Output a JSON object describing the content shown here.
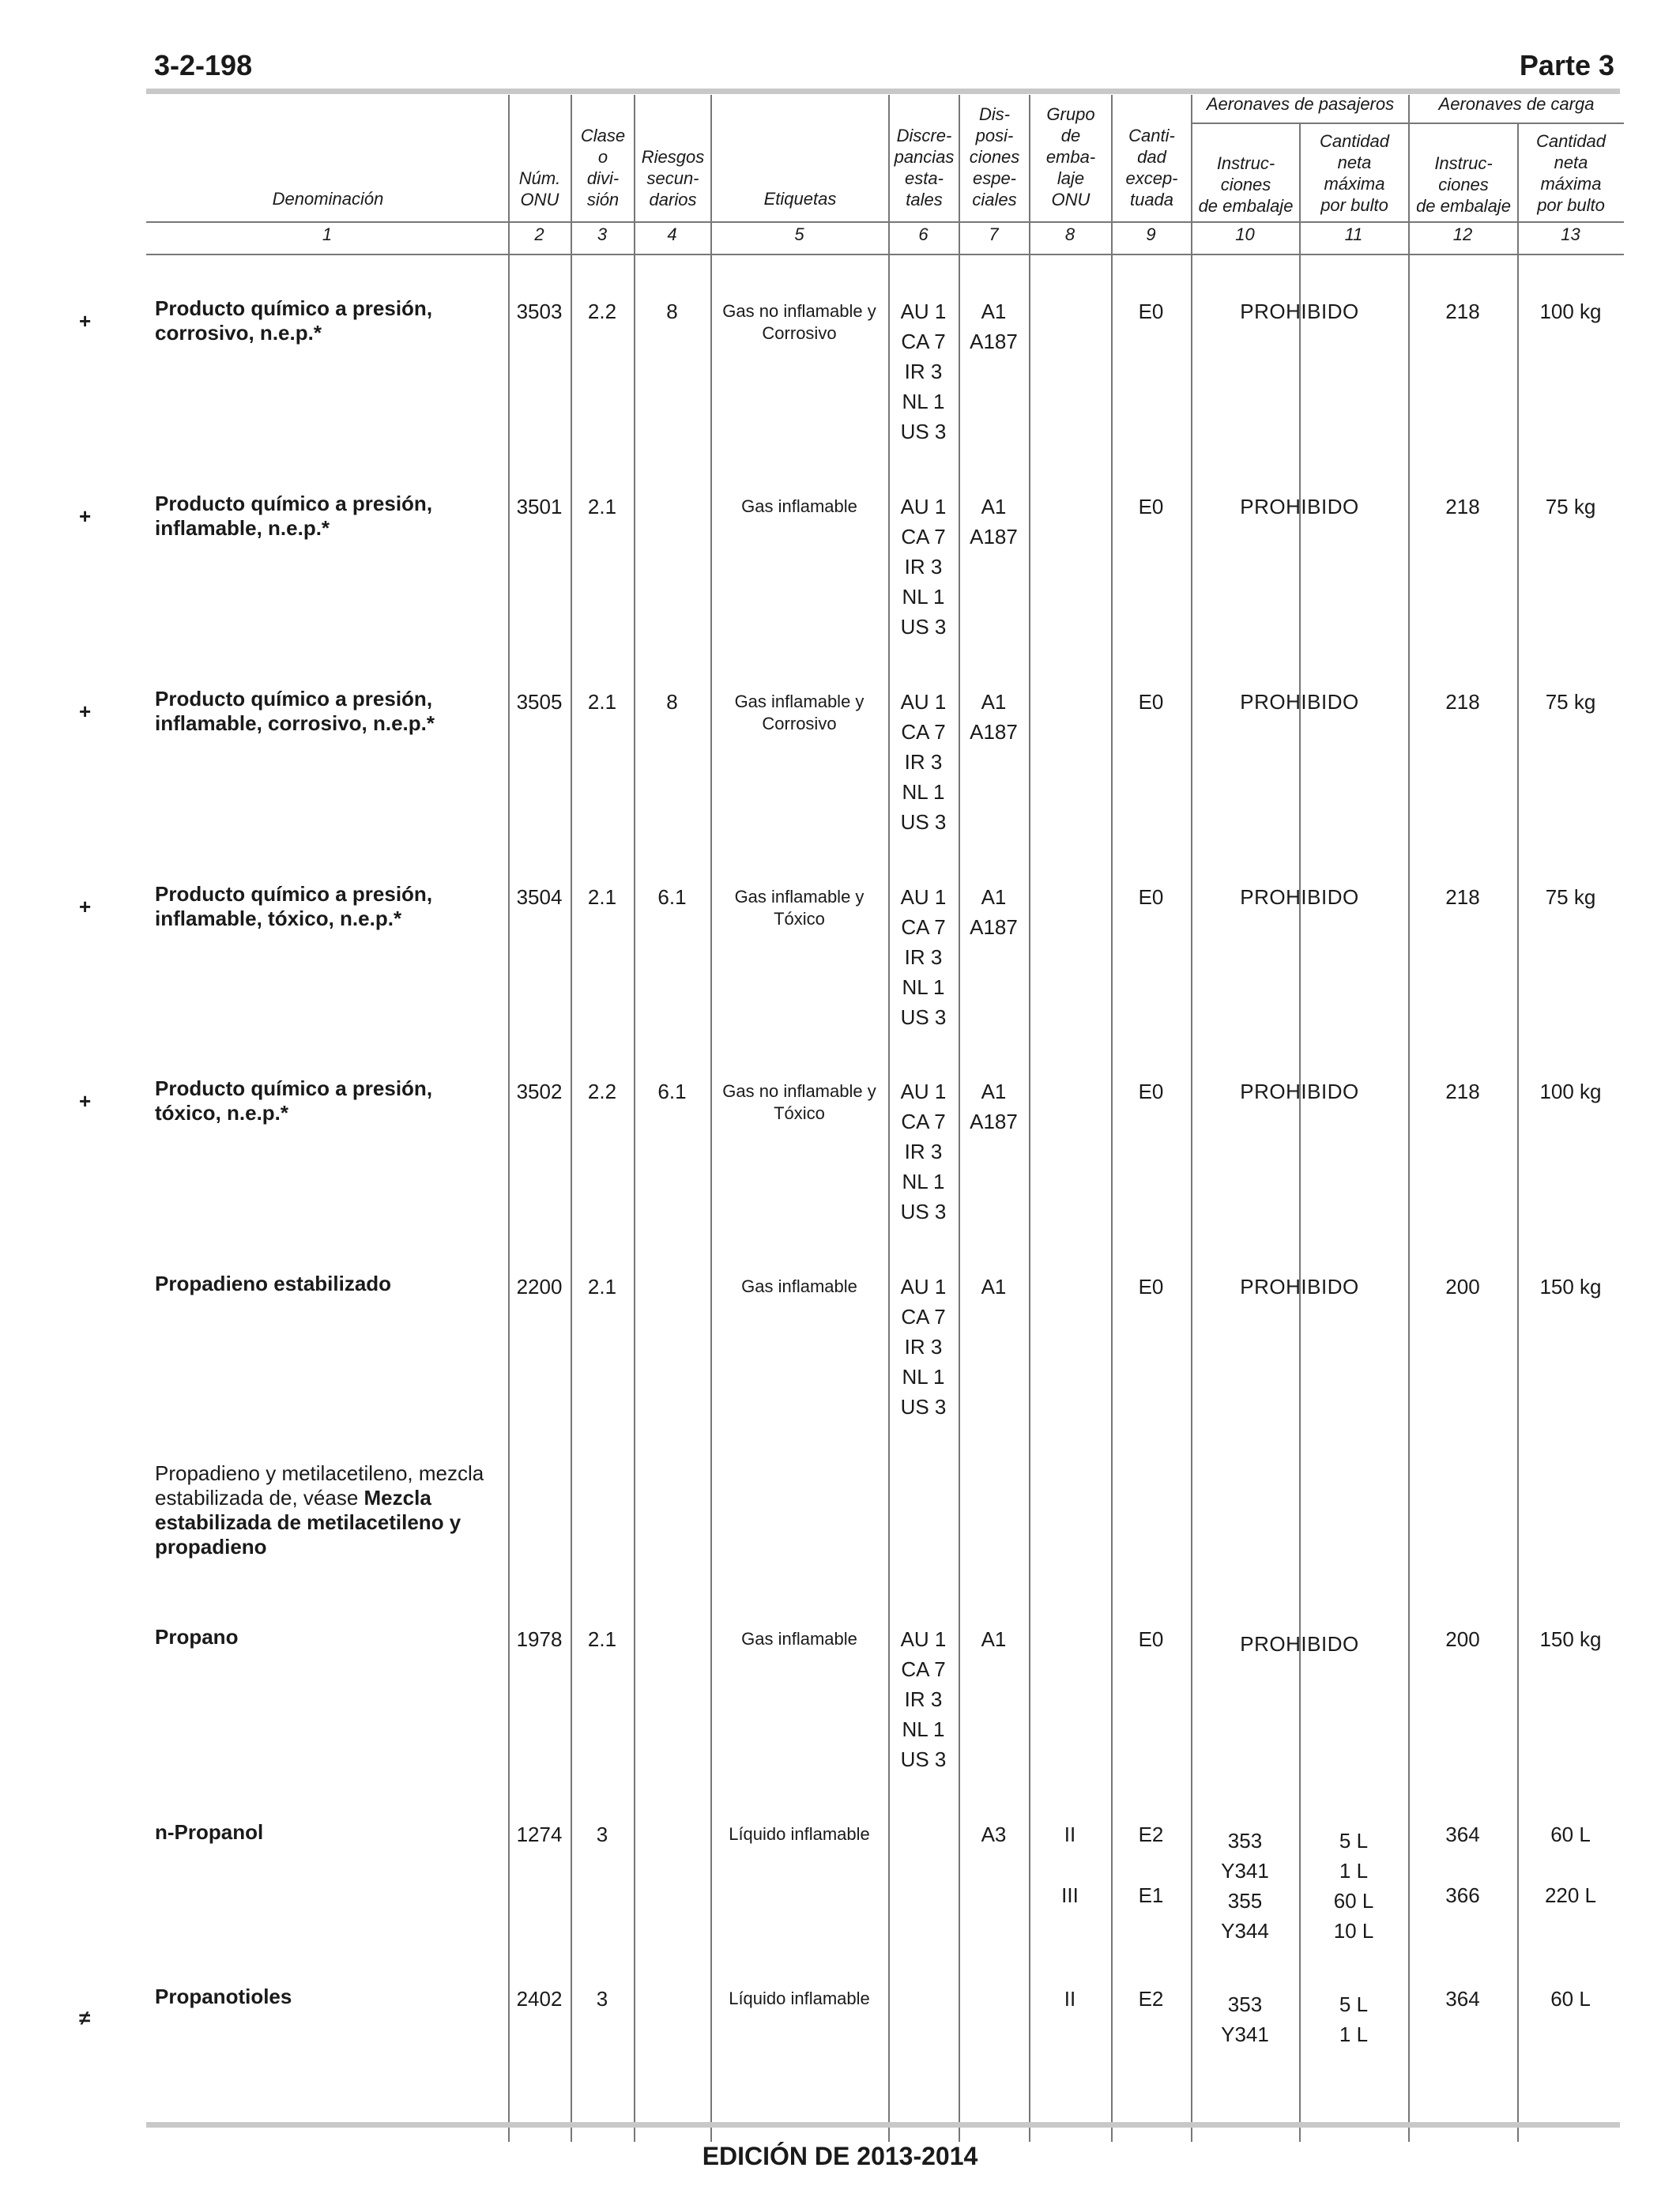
{
  "page": {
    "number": "3-2-198",
    "part": "Parte 3",
    "footer": "EDICIÓN DE 2013-2014"
  },
  "headers": {
    "denominacion": "Denominación",
    "num_onu": "Núm.\nONU",
    "clase": "Clase\no\ndivi-\nsión",
    "riesgos": "Riesgos\nsecun-\ndarios",
    "etiquetas": "Etiquetas",
    "discrepancias": "Discre-\npancias\nesta-\ntales",
    "disposiciones": "Dis-\nposi-\nciones\nespe-\nciales",
    "grupo": "Grupo\nde\nemba-\nlaje\nONU",
    "cantidad_exceptuada": "Canti-\ndad\nexcep-\ntuada",
    "pasajeros": "Aeronaves de pasajeros",
    "carga": "Aeronaves de carga",
    "instrucciones": "Instruc-\nciones\nde embalaje",
    "cantidad_neta": "Cantidad\nneta\nmáxima\npor bulto",
    "col_numbers": [
      "1",
      "2",
      "3",
      "4",
      "5",
      "6",
      "7",
      "8",
      "9",
      "10",
      "11",
      "12",
      "13"
    ]
  },
  "rows": [
    {
      "mark": "+",
      "name": "Producto químico a presión, corrosivo, n.e.p.*",
      "un": "3503",
      "class": "2.2",
      "sub": "8",
      "label": "Gas no inflamable y\nCorrosivo",
      "disc": "AU 1\nCA 7\nIR 3\nNL 1\nUS 3",
      "sp": "A1\nA187",
      "pg": "",
      "eq": "E0",
      "pax_pi": "PROHIBIDO",
      "pax_qty": "",
      "cargo_pi": "218",
      "cargo_qty": "100 kg"
    },
    {
      "mark": "+",
      "name": "Producto químico a presión, inflamable, n.e.p.*",
      "un": "3501",
      "class": "2.1",
      "sub": "",
      "label": "Gas inflamable",
      "disc": "AU 1\nCA 7\nIR 3\nNL 1\nUS 3",
      "sp": "A1\nA187",
      "pg": "",
      "eq": "E0",
      "pax_pi": "PROHIBIDO",
      "pax_qty": "",
      "cargo_pi": "218",
      "cargo_qty": "75 kg"
    },
    {
      "mark": "+",
      "name": "Producto químico a presión, inflamable, corrosivo, n.e.p.*",
      "un": "3505",
      "class": "2.1",
      "sub": "8",
      "label": "Gas inflamable y\nCorrosivo",
      "disc": "AU 1\nCA 7\nIR 3\nNL 1\nUS 3",
      "sp": "A1\nA187",
      "pg": "",
      "eq": "E0",
      "pax_pi": "PROHIBIDO",
      "pax_qty": "",
      "cargo_pi": "218",
      "cargo_qty": "75 kg"
    },
    {
      "mark": "+",
      "name": "Producto químico a presión, inflamable, tóxico, n.e.p.*",
      "un": "3504",
      "class": "2.1",
      "sub": "6.1",
      "label": "Gas inflamable y\nTóxico",
      "disc": "AU 1\nCA 7\nIR 3\nNL 1\nUS 3",
      "sp": "A1\nA187",
      "pg": "",
      "eq": "E0",
      "pax_pi": "PROHIBIDO",
      "pax_qty": "",
      "cargo_pi": "218",
      "cargo_qty": "75 kg"
    },
    {
      "mark": "+",
      "name": "Producto químico a presión, tóxico, n.e.p.*",
      "un": "3502",
      "class": "2.2",
      "sub": "6.1",
      "label": "Gas no inflamable y\nTóxico",
      "disc": "AU 1\nCA 7\nIR 3\nNL 1\nUS 3",
      "sp": "A1\nA187",
      "pg": "",
      "eq": "E0",
      "pax_pi": "PROHIBIDO",
      "pax_qty": "",
      "cargo_pi": "218",
      "cargo_qty": "100 kg"
    },
    {
      "mark": "",
      "name": "Propadieno estabilizado",
      "un": "2200",
      "class": "2.1",
      "sub": "",
      "label": "Gas inflamable",
      "disc": "AU 1\nCA 7\nIR 3\nNL 1\nUS 3",
      "sp": "A1",
      "pg": "",
      "eq": "E0",
      "pax_pi": "PROHIBIDO",
      "pax_qty": "",
      "cargo_pi": "200",
      "cargo_qty": "150 kg"
    }
  ],
  "reference": {
    "text": "Propadieno y metilacetileno, mezcla estabilizada de, véase ",
    "bold": "Mezcla estabilizada de metilacetileno y propadieno"
  },
  "propano": {
    "name": "Propano",
    "un": "1978",
    "class": "2.1",
    "label": "Gas inflamable",
    "disc": "AU 1\nCA 7\nIR 3\nNL 1\nUS 3",
    "sp": "A1",
    "eq": "E0",
    "pax_pi": "PROHIBIDO",
    "cargo_pi": "200",
    "cargo_qty": "150 kg"
  },
  "npropanol": {
    "name": "n-Propanol",
    "un": "1274",
    "class": "3",
    "label": "Líquido inflamable",
    "sp": "A3",
    "pg": [
      "II",
      "III"
    ],
    "eq": [
      "E2",
      "E1"
    ],
    "pax_pi": "353\nY341\n355\nY344",
    "pax_qty": "5 L\n1 L\n60 L\n10 L",
    "cargo_pi": [
      "364",
      "366"
    ],
    "cargo_qty": [
      "60 L",
      "220 L"
    ]
  },
  "propanotioles": {
    "mark": "≠",
    "name": "Propanotioles",
    "un": "2402",
    "class": "3",
    "label": "Líquido inflamable",
    "pg": "II",
    "eq": "E2",
    "pax_pi": "353\nY341",
    "pax_qty": "5 L\n1 L",
    "cargo_pi": "364",
    "cargo_qty": "60 L"
  }
}
